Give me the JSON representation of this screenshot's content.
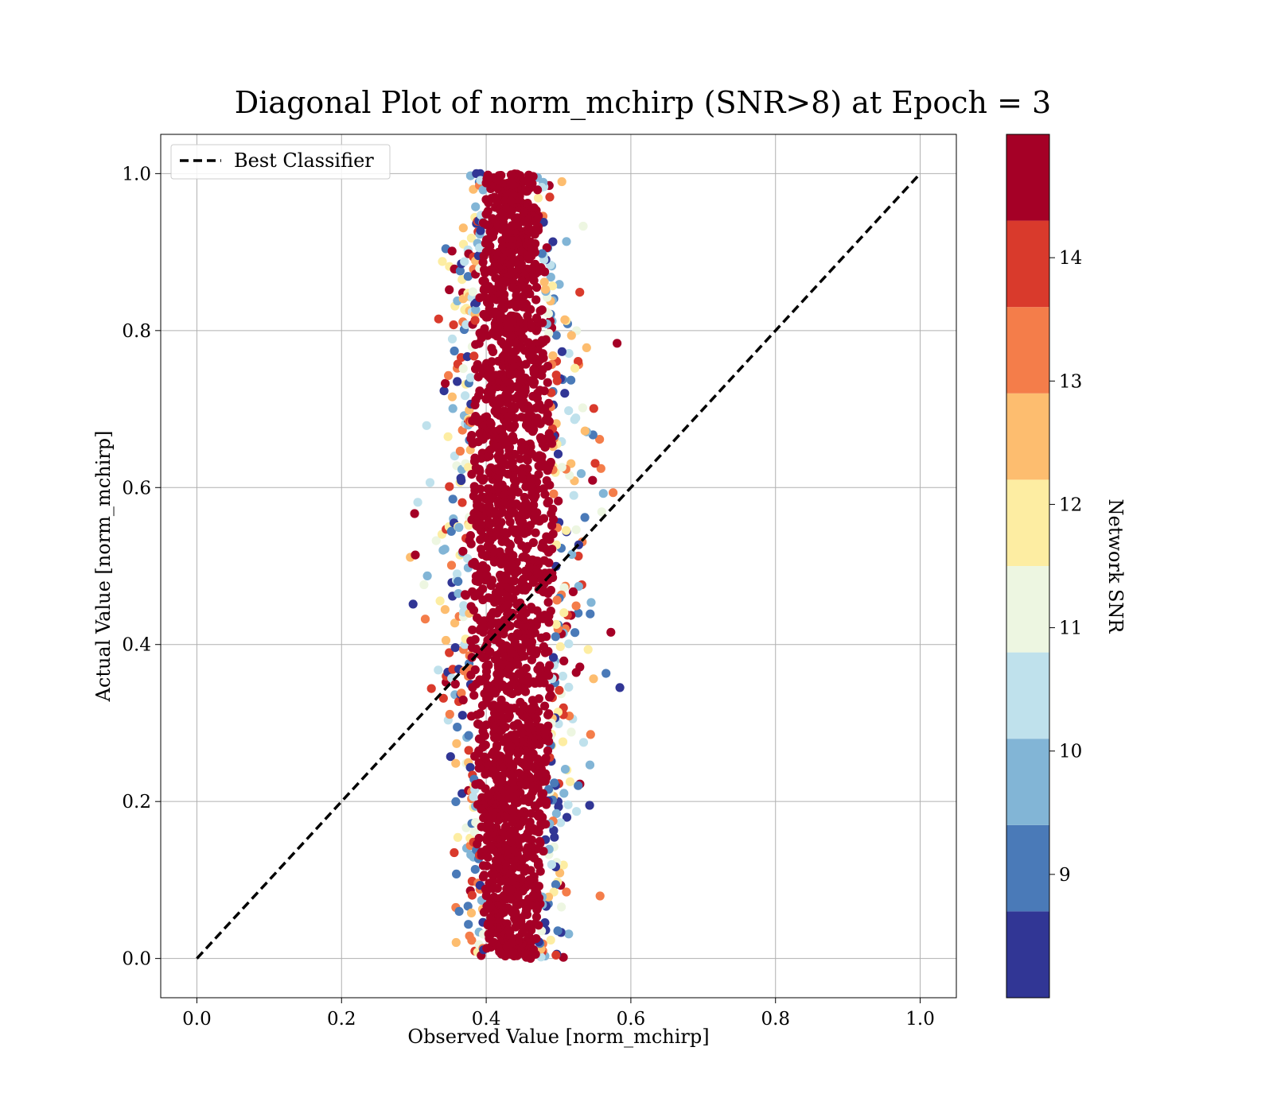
{
  "chart_data": {
    "type": "scatter",
    "title": "Diagonal Plot of norm_mchirp (SNR>8) at Epoch = 3",
    "xlabel": "Observed Value [norm_mchirp]",
    "ylabel": "Actual Value [norm_mchirp]",
    "xlim": [
      -0.05,
      1.05
    ],
    "ylim": [
      -0.05,
      1.05
    ],
    "xticks": [
      "0.0",
      "0.2",
      "0.4",
      "0.6",
      "0.8",
      "1.0"
    ],
    "yticks": [
      "0.0",
      "0.2",
      "0.4",
      "0.6",
      "0.8",
      "1.0"
    ],
    "grid": true,
    "legend": {
      "placement": "upper-left",
      "entries": [
        "Best Classifier"
      ]
    },
    "reference_line": {
      "name": "Best Classifier",
      "x": [
        0.0,
        1.0
      ],
      "y": [
        0.0,
        1.0
      ],
      "style": "dashed",
      "color": "#000000"
    },
    "colorbar": {
      "label": "Network SNR",
      "range": [
        8,
        15
      ],
      "ticks": [
        "9",
        "10",
        "11",
        "12",
        "13",
        "14"
      ],
      "levels": [
        {
          "from": 8.0,
          "to": 8.7,
          "color": "#313695"
        },
        {
          "from": 8.7,
          "to": 9.4,
          "color": "#4a7ab8"
        },
        {
          "from": 9.4,
          "to": 10.1,
          "color": "#82b5d6"
        },
        {
          "from": 10.1,
          "to": 10.8,
          "color": "#bfe1ec"
        },
        {
          "from": 10.8,
          "to": 11.5,
          "color": "#edf6e1"
        },
        {
          "from": 11.5,
          "to": 12.2,
          "color": "#fdeda2"
        },
        {
          "from": 12.2,
          "to": 12.9,
          "color": "#fdbd6f"
        },
        {
          "from": 12.9,
          "to": 13.6,
          "color": "#f47d4a"
        },
        {
          "from": 13.6,
          "to": 14.3,
          "color": "#d93a2c"
        },
        {
          "from": 14.3,
          "to": 15.0,
          "color": "#a50026"
        }
      ]
    },
    "points_summary": {
      "count": 2600,
      "observed_center": 0.435,
      "observed_spread": 0.045,
      "actual_range": [
        0.0,
        1.0
      ],
      "observed_range": [
        0.25,
        0.63
      ]
    }
  }
}
